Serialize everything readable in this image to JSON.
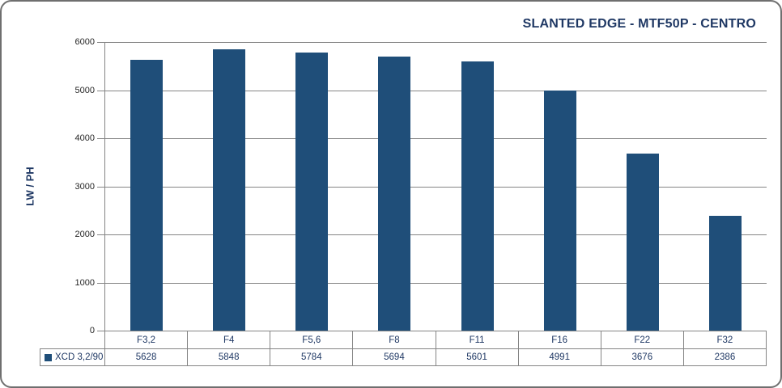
{
  "chart_data": {
    "type": "bar",
    "title": "SLANTED EDGE - MTF50P - CENTRO",
    "xlabel": "",
    "ylabel": "LW / PH",
    "categories": [
      "F3,2",
      "F4",
      "F5,6",
      "F8",
      "F11",
      "F16",
      "F22",
      "F32"
    ],
    "series": [
      {
        "name": "XCD 3,2/90",
        "values": [
          5628,
          5848,
          5784,
          5694,
          5601,
          4991,
          3676,
          2386
        ]
      }
    ],
    "ylim": [
      0,
      6000
    ],
    "ytick_interval": 1000,
    "yticks": [
      "6000",
      "5000",
      "4000",
      "3000",
      "2000",
      "1000",
      "0"
    ],
    "grid": true,
    "legend_position": "table-row-left",
    "colors": {
      "bar": "#1F4E79",
      "title_text": "#1F3864",
      "axis_text": "#262626",
      "gridline": "#858585",
      "table_text": "#1F3864"
    }
  }
}
